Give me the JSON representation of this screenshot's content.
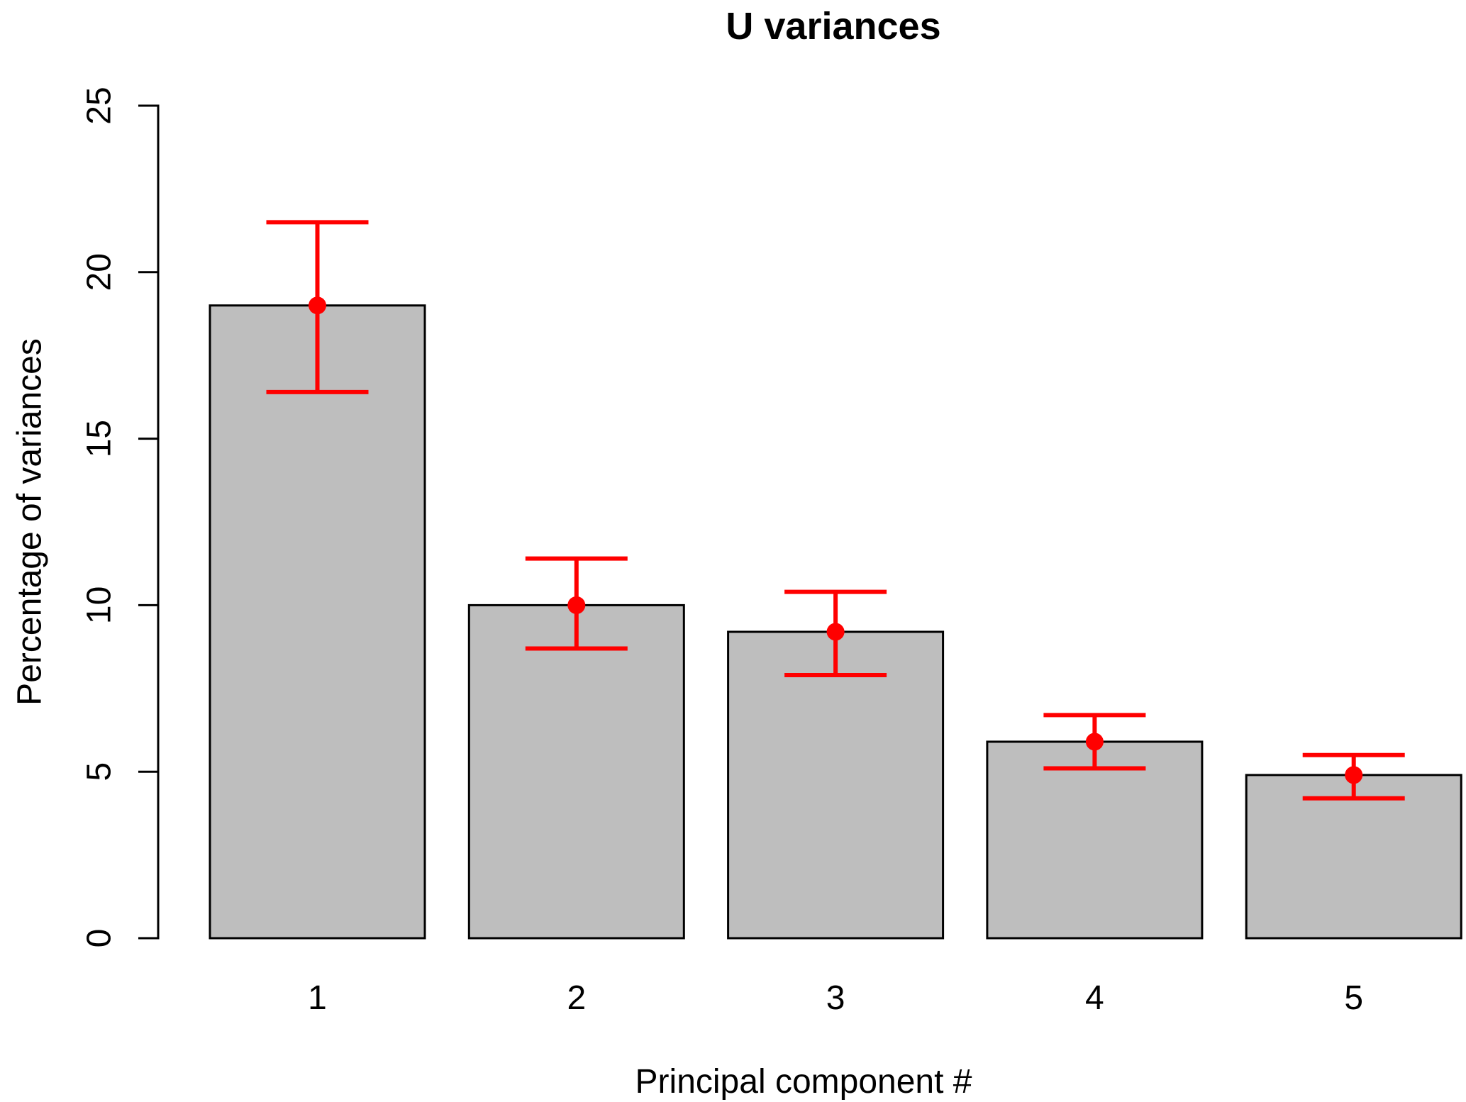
{
  "chart_data": {
    "type": "bar",
    "title": "U variances",
    "xlabel": "Principal component #",
    "ylabel": "Percentage of variances",
    "categories": [
      "1",
      "2",
      "3",
      "4",
      "5"
    ],
    "values": [
      19.0,
      10.0,
      9.2,
      5.9,
      4.9
    ],
    "points": [
      19.0,
      10.0,
      9.2,
      5.9,
      4.9
    ],
    "error_bars": {
      "lower": [
        16.4,
        8.7,
        7.9,
        5.1,
        4.2
      ],
      "upper": [
        21.5,
        11.4,
        10.4,
        6.7,
        5.5
      ]
    },
    "ylim": [
      0,
      25
    ],
    "yticks": [
      0,
      5,
      10,
      15,
      20,
      25
    ],
    "grid": false,
    "legend": null,
    "colors": {
      "bar_fill": "#bebebe",
      "bar_border": "#000000",
      "error_color": "#ff0000",
      "axis_color": "#000000",
      "background": "#ffffff"
    }
  }
}
